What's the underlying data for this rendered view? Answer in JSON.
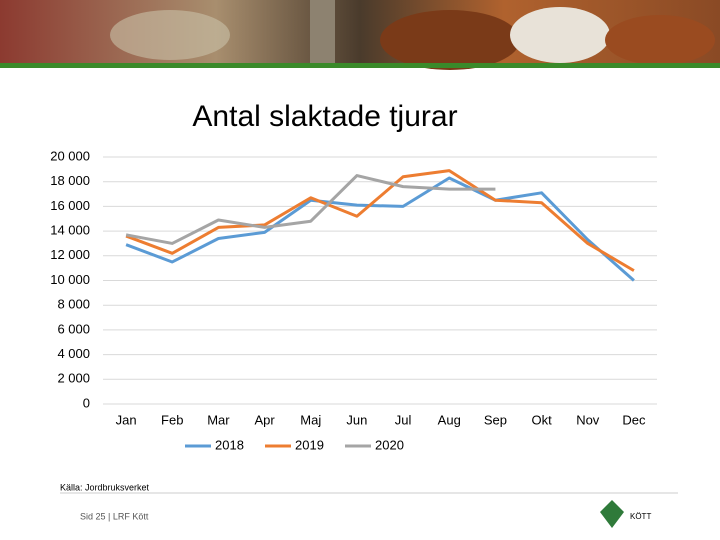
{
  "chart_data": {
    "type": "line",
    "title": "Antal slaktade tjurar",
    "categories": [
      "Jan",
      "Feb",
      "Mar",
      "Apr",
      "Maj",
      "Jun",
      "Jul",
      "Aug",
      "Sep",
      "Okt",
      "Nov",
      "Dec"
    ],
    "series": [
      {
        "name": "2018",
        "color": "#5b9bd5",
        "values": [
          12900,
          11500,
          13400,
          13900,
          16500,
          16100,
          16000,
          18300,
          16500,
          17100,
          13300,
          10000
        ]
      },
      {
        "name": "2019",
        "color": "#ed7d31",
        "values": [
          13600,
          12200,
          14300,
          14500,
          16700,
          15200,
          18400,
          18900,
          16500,
          16300,
          13000,
          10800
        ]
      },
      {
        "name": "2020",
        "color": "#a5a5a5",
        "values": [
          13700,
          13000,
          14900,
          14300,
          14800,
          18500,
          17600,
          17400,
          17400,
          null,
          null,
          null
        ]
      }
    ],
    "ylim": [
      0,
      20000
    ],
    "yticks": [
      0,
      {
        "value": 2000,
        "label": "2 000"
      },
      {
        "value": 4000,
        "label": "4 000"
      },
      {
        "value": 6000,
        "label": "6 000"
      },
      {
        "value": 8000,
        "label": "8 000"
      },
      {
        "value": 10000,
        "label": "10 000"
      },
      {
        "value": 12000,
        "label": "12 000"
      },
      {
        "value": 14000,
        "label": "14 000"
      },
      {
        "value": 16000,
        "label": "16 000"
      },
      {
        "value": 18000,
        "label": "18 000"
      },
      {
        "value": 20000,
        "label": "20 000"
      }
    ],
    "grid": true,
    "legend": "bottom",
    "source": "Källa: Jordbruksverket",
    "footer": "Sid 25 | LRF Kött",
    "logo_text": "KÖTT"
  }
}
